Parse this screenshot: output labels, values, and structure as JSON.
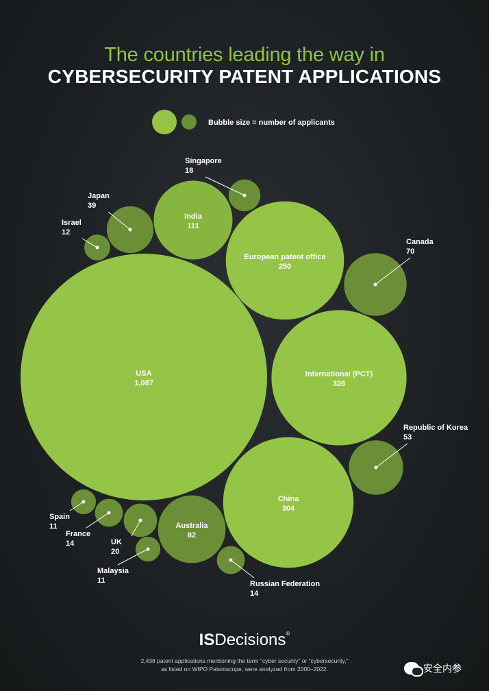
{
  "title": {
    "line1": "The countries leading the way in",
    "line2": "CYBERSECURITY PATENT APPLICATIONS"
  },
  "legend": {
    "label": "Bubble size =  number of applicants"
  },
  "colors": {
    "bubble_large": "#94c546",
    "bubble_medium": "#86b63f",
    "bubble_small": "#6b8f37",
    "title_green": "#8fc540",
    "background": "#1d2124"
  },
  "chart_data": {
    "type": "bubble",
    "unit": "number of applicants",
    "series": [
      {
        "name": "USA",
        "display": "1,087",
        "value": 1087
      },
      {
        "name": "International (PCT)",
        "display": "326",
        "value": 326
      },
      {
        "name": "China",
        "display": "304",
        "value": 304
      },
      {
        "name": "European patent office",
        "display": "250",
        "value": 250
      },
      {
        "name": "India",
        "display": "111",
        "value": 111
      },
      {
        "name": "Australia",
        "display": "82",
        "value": 82
      },
      {
        "name": "Canada",
        "display": "70",
        "value": 70
      },
      {
        "name": "Republic of Korea",
        "display": "53",
        "value": 53
      },
      {
        "name": "Japan",
        "display": "39",
        "value": 39
      },
      {
        "name": "UK",
        "display": "20",
        "value": 20
      },
      {
        "name": "Singapore",
        "display": "18",
        "value": 18
      },
      {
        "name": "France",
        "display": "14",
        "value": 14
      },
      {
        "name": "Russian Federation",
        "display": "14",
        "value": 14
      },
      {
        "name": "Israel",
        "display": "12",
        "value": 12
      },
      {
        "name": "Spain",
        "display": "11",
        "value": 11
      },
      {
        "name": "Malaysia",
        "display": "11",
        "value": 11
      }
    ]
  },
  "footer": {
    "logo_is": "IS",
    "logo_rest": "Decisions",
    "logo_mark": "®",
    "note_line1": "2,438 patent applications mentioning the term \"cyber security\" or \"cybersecurity,\"",
    "note_line2": "as listed on WIPO Patentscope, were analyzed from 2000–2022."
  },
  "watermark": {
    "text": "安全内参"
  }
}
